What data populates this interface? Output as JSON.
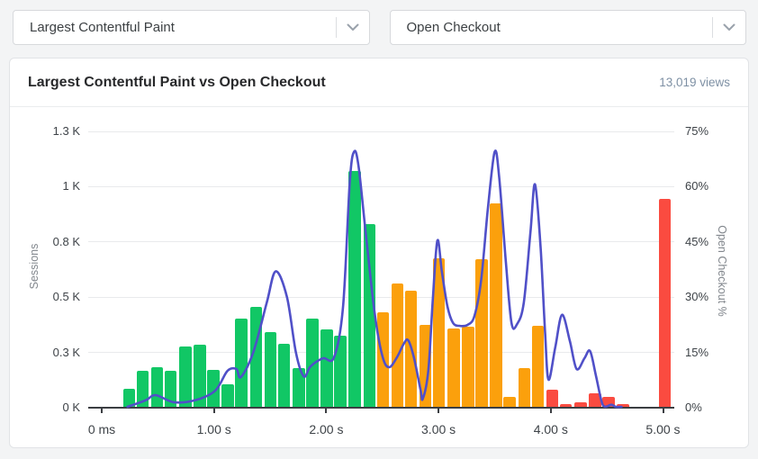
{
  "filters": {
    "metric_dropdown": {
      "value": "Largest Contentful Paint"
    },
    "event_dropdown": {
      "value": "Open Checkout"
    }
  },
  "card": {
    "title": "Largest Contentful Paint vs Open Checkout",
    "views_label": "13,019 views"
  },
  "chart_data": {
    "type": "bar",
    "subtype": "histogram-with-line-overlay",
    "title": "Largest Contentful Paint vs Open Checkout",
    "bin_width_s": 0.126,
    "colors": {
      "good": "#11c765",
      "needs_improvement": "#fba00c",
      "poor": "#fa4b40",
      "line": "#5050c8"
    },
    "left_axis": {
      "title": "Sessions",
      "max": 1250,
      "ticks": [
        {
          "v": 0,
          "label": "0 K"
        },
        {
          "v": 250,
          "label": "0.3 K"
        },
        {
          "v": 500,
          "label": "0.5 K"
        },
        {
          "v": 750,
          "label": "0.8 K"
        },
        {
          "v": 1000,
          "label": "1 K"
        },
        {
          "v": 1250,
          "label": "1.3 K"
        }
      ]
    },
    "right_axis": {
      "title": "Open Checkout %",
      "max": 75,
      "ticks": [
        {
          "v": 0,
          "label": "0%"
        },
        {
          "v": 15,
          "label": "15%"
        },
        {
          "v": 30,
          "label": "30%"
        },
        {
          "v": 45,
          "label": "45%"
        },
        {
          "v": 60,
          "label": "60%"
        },
        {
          "v": 75,
          "label": "75%"
        }
      ]
    },
    "x_axis": {
      "ticks": [
        {
          "t": 0,
          "label": "0 ms"
        },
        {
          "t": 1,
          "label": "1.00 s"
        },
        {
          "t": 2,
          "label": "2.00 s"
        },
        {
          "t": 3,
          "label": "3.00 s"
        },
        {
          "t": 4,
          "label": "4.00 s"
        },
        {
          "t": 5,
          "label": "5.00 s"
        }
      ]
    },
    "bars": [
      {
        "t": 0.19,
        "sessions": 85,
        "band": "good"
      },
      {
        "t": 0.31,
        "sessions": 165,
        "band": "good"
      },
      {
        "t": 0.44,
        "sessions": 185,
        "band": "good"
      },
      {
        "t": 0.56,
        "sessions": 165,
        "band": "good"
      },
      {
        "t": 0.69,
        "sessions": 275,
        "band": "good"
      },
      {
        "t": 0.82,
        "sessions": 285,
        "band": "good"
      },
      {
        "t": 0.94,
        "sessions": 170,
        "band": "good"
      },
      {
        "t": 1.07,
        "sessions": 105,
        "band": "good"
      },
      {
        "t": 1.19,
        "sessions": 405,
        "band": "good"
      },
      {
        "t": 1.32,
        "sessions": 455,
        "band": "good"
      },
      {
        "t": 1.45,
        "sessions": 340,
        "band": "good"
      },
      {
        "t": 1.57,
        "sessions": 290,
        "band": "good"
      },
      {
        "t": 1.7,
        "sessions": 180,
        "band": "good"
      },
      {
        "t": 1.82,
        "sessions": 405,
        "band": "good"
      },
      {
        "t": 1.95,
        "sessions": 355,
        "band": "good"
      },
      {
        "t": 2.07,
        "sessions": 325,
        "band": "good"
      },
      {
        "t": 2.2,
        "sessions": 1070,
        "band": "good"
      },
      {
        "t": 2.33,
        "sessions": 830,
        "band": "good"
      },
      {
        "t": 2.45,
        "sessions": 430,
        "band": "needs_improvement"
      },
      {
        "t": 2.58,
        "sessions": 560,
        "band": "needs_improvement"
      },
      {
        "t": 2.7,
        "sessions": 530,
        "band": "needs_improvement"
      },
      {
        "t": 2.83,
        "sessions": 375,
        "band": "needs_improvement"
      },
      {
        "t": 2.95,
        "sessions": 675,
        "band": "needs_improvement"
      },
      {
        "t": 3.08,
        "sessions": 360,
        "band": "needs_improvement"
      },
      {
        "t": 3.21,
        "sessions": 365,
        "band": "needs_improvement"
      },
      {
        "t": 3.33,
        "sessions": 670,
        "band": "needs_improvement"
      },
      {
        "t": 3.46,
        "sessions": 925,
        "band": "needs_improvement"
      },
      {
        "t": 3.58,
        "sessions": 50,
        "band": "needs_improvement"
      },
      {
        "t": 3.71,
        "sessions": 180,
        "band": "needs_improvement"
      },
      {
        "t": 3.83,
        "sessions": 370,
        "band": "needs_improvement"
      },
      {
        "t": 3.96,
        "sessions": 80,
        "band": "poor"
      },
      {
        "t": 4.08,
        "sessions": 15,
        "band": "poor"
      },
      {
        "t": 4.21,
        "sessions": 25,
        "band": "poor"
      },
      {
        "t": 4.34,
        "sessions": 65,
        "band": "poor"
      },
      {
        "t": 4.46,
        "sessions": 50,
        "band": "poor"
      },
      {
        "t": 4.59,
        "sessions": 15,
        "band": "poor"
      },
      {
        "t": 4.96,
        "sessions": 945,
        "band": "poor"
      }
    ],
    "line_series": {
      "name": "Open Checkout %",
      "points": [
        [
          0.23,
          0
        ],
        [
          0.39,
          2
        ],
        [
          0.48,
          3.4
        ],
        [
          0.64,
          1.5
        ],
        [
          0.83,
          2
        ],
        [
          1.01,
          4.6
        ],
        [
          1.12,
          10
        ],
        [
          1.2,
          10.5
        ],
        [
          1.24,
          8.3
        ],
        [
          1.35,
          15
        ],
        [
          1.47,
          28.5
        ],
        [
          1.55,
          37
        ],
        [
          1.65,
          30
        ],
        [
          1.73,
          15
        ],
        [
          1.8,
          8.5
        ],
        [
          1.86,
          11.2
        ],
        [
          1.97,
          13.4
        ],
        [
          2.07,
          13.7
        ],
        [
          2.15,
          27.5
        ],
        [
          2.21,
          61.5
        ],
        [
          2.25,
          69.6
        ],
        [
          2.29,
          65
        ],
        [
          2.35,
          48
        ],
        [
          2.43,
          26
        ],
        [
          2.5,
          14
        ],
        [
          2.56,
          11
        ],
        [
          2.63,
          13.7
        ],
        [
          2.69,
          17.3
        ],
        [
          2.73,
          18.3
        ],
        [
          2.78,
          13.7
        ],
        [
          2.84,
          4.9
        ],
        [
          2.86,
          2.4
        ],
        [
          2.91,
          10.3
        ],
        [
          2.95,
          29.8
        ],
        [
          2.99,
          45.4
        ],
        [
          3.03,
          37
        ],
        [
          3.08,
          27.4
        ],
        [
          3.13,
          23
        ],
        [
          3.19,
          22.2
        ],
        [
          3.26,
          22.5
        ],
        [
          3.32,
          24.9
        ],
        [
          3.38,
          34.7
        ],
        [
          3.44,
          54.2
        ],
        [
          3.5,
          69.4
        ],
        [
          3.54,
          62.8
        ],
        [
          3.6,
          39.6
        ],
        [
          3.65,
          23
        ],
        [
          3.7,
          22.7
        ],
        [
          3.76,
          28.6
        ],
        [
          3.82,
          48.1
        ],
        [
          3.86,
          60.6
        ],
        [
          3.91,
          43.2
        ],
        [
          3.95,
          20
        ],
        [
          3.98,
          7.6
        ],
        [
          4.04,
          16.4
        ],
        [
          4.1,
          25.2
        ],
        [
          4.17,
          18.1
        ],
        [
          4.23,
          10.5
        ],
        [
          4.3,
          13.4
        ],
        [
          4.35,
          15.4
        ],
        [
          4.4,
          9
        ],
        [
          4.45,
          2
        ],
        [
          4.48,
          0.3
        ],
        [
          4.54,
          0.8
        ],
        [
          4.58,
          0.2
        ],
        [
          4.63,
          0.2
        ]
      ]
    }
  }
}
